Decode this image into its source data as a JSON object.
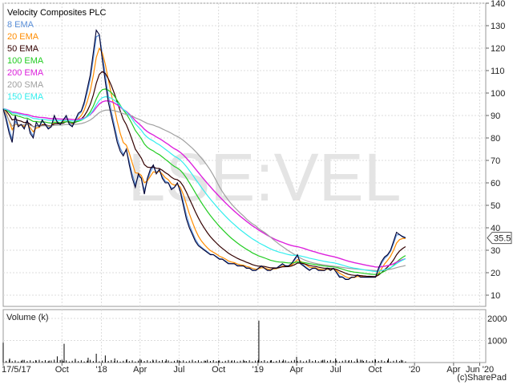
{
  "chart_data": {
    "type": "line",
    "title": "Velocity Composites PLC",
    "watermark": "LSE:VEL",
    "copyright": "(c)SharePad",
    "last_price_label": "35.5",
    "price_axis": {
      "ylim": [
        5,
        140
      ],
      "ticks": [
        "10",
        "20",
        "30",
        "40",
        "50",
        "60",
        "70",
        "80",
        "90",
        "100",
        "110",
        "120",
        "130",
        "140"
      ]
    },
    "volume_axis": {
      "label": "Volume (k)",
      "ylim": [
        0,
        2400
      ],
      "ticks": [
        "1000",
        "2000"
      ]
    },
    "x_axis": {
      "range": [
        "2017-05-17",
        "2020-06-15"
      ],
      "ticks": [
        {
          "date": "2017-05-17",
          "label": "17/5/17"
        },
        {
          "date": "2017-10-01",
          "label": "Oct"
        },
        {
          "date": "2018-01-01",
          "label": "'18"
        },
        {
          "date": "2018-04-01",
          "label": "Apr"
        },
        {
          "date": "2018-07-01",
          "label": "Jul"
        },
        {
          "date": "2018-10-01",
          "label": "Oct"
        },
        {
          "date": "2019-01-01",
          "label": "'19"
        },
        {
          "date": "2019-04-01",
          "label": "Apr"
        },
        {
          "date": "2019-07-01",
          "label": "Jul"
        },
        {
          "date": "2019-10-01",
          "label": "Oct"
        },
        {
          "date": "2020-01-01",
          "label": "'20"
        },
        {
          "date": "2020-04-01",
          "label": "Apr"
        },
        {
          "date": "2020-06-01",
          "label": "Jun '20"
        }
      ]
    },
    "price": [
      [
        "2017-05-17",
        93
      ],
      [
        "2017-05-24",
        88
      ],
      [
        "2017-05-31",
        82
      ],
      [
        "2017-06-07",
        78
      ],
      [
        "2017-06-14",
        90
      ],
      [
        "2017-06-21",
        85
      ],
      [
        "2017-06-28",
        86
      ],
      [
        "2017-07-05",
        84
      ],
      [
        "2017-07-12",
        88
      ],
      [
        "2017-07-19",
        82
      ],
      [
        "2017-07-26",
        80
      ],
      [
        "2017-08-02",
        87
      ],
      [
        "2017-08-09",
        85
      ],
      [
        "2017-08-16",
        88
      ],
      [
        "2017-08-23",
        86
      ],
      [
        "2017-08-30",
        84
      ],
      [
        "2017-09-06",
        85
      ],
      [
        "2017-09-13",
        90
      ],
      [
        "2017-09-20",
        87
      ],
      [
        "2017-09-27",
        86
      ],
      [
        "2017-10-04",
        88
      ],
      [
        "2017-10-11",
        90
      ],
      [
        "2017-10-18",
        86
      ],
      [
        "2017-10-25",
        85
      ],
      [
        "2017-11-01",
        88
      ],
      [
        "2017-11-08",
        91
      ],
      [
        "2017-11-15",
        92
      ],
      [
        "2017-11-22",
        96
      ],
      [
        "2017-11-29",
        102
      ],
      [
        "2017-12-06",
        108
      ],
      [
        "2017-12-13",
        118
      ],
      [
        "2017-12-20",
        128
      ],
      [
        "2017-12-27",
        126
      ],
      [
        "2018-01-03",
        115
      ],
      [
        "2018-01-10",
        105
      ],
      [
        "2018-01-17",
        96
      ],
      [
        "2018-01-24",
        90
      ],
      [
        "2018-01-31",
        84
      ],
      [
        "2018-02-07",
        78
      ],
      [
        "2018-02-14",
        74
      ],
      [
        "2018-02-21",
        72
      ],
      [
        "2018-02-28",
        75
      ],
      [
        "2018-03-07",
        68
      ],
      [
        "2018-03-14",
        62
      ],
      [
        "2018-03-21",
        58
      ],
      [
        "2018-03-28",
        64
      ],
      [
        "2018-04-04",
        62
      ],
      [
        "2018-04-11",
        55
      ],
      [
        "2018-04-18",
        62
      ],
      [
        "2018-04-25",
        66
      ],
      [
        "2018-05-02",
        68
      ],
      [
        "2018-05-09",
        64
      ],
      [
        "2018-05-16",
        66
      ],
      [
        "2018-05-23",
        62
      ],
      [
        "2018-05-30",
        60
      ],
      [
        "2018-06-06",
        60
      ],
      [
        "2018-06-13",
        57
      ],
      [
        "2018-06-20",
        58
      ],
      [
        "2018-06-27",
        60
      ],
      [
        "2018-07-04",
        56
      ],
      [
        "2018-07-11",
        50
      ],
      [
        "2018-07-18",
        44
      ],
      [
        "2018-07-25",
        40
      ],
      [
        "2018-08-01",
        37
      ],
      [
        "2018-08-08",
        34
      ],
      [
        "2018-08-15",
        32
      ],
      [
        "2018-08-22",
        31
      ],
      [
        "2018-08-29",
        30
      ],
      [
        "2018-09-05",
        29
      ],
      [
        "2018-09-12",
        28
      ],
      [
        "2018-09-19",
        28
      ],
      [
        "2018-09-26",
        27
      ],
      [
        "2018-10-03",
        26
      ],
      [
        "2018-10-10",
        26
      ],
      [
        "2018-10-17",
        25
      ],
      [
        "2018-10-24",
        24
      ],
      [
        "2018-10-31",
        24
      ],
      [
        "2018-11-07",
        24
      ],
      [
        "2018-11-14",
        23
      ],
      [
        "2018-11-21",
        23
      ],
      [
        "2018-11-28",
        23
      ],
      [
        "2018-12-05",
        22
      ],
      [
        "2018-12-12",
        22
      ],
      [
        "2018-12-19",
        21
      ],
      [
        "2018-12-27",
        21
      ],
      [
        "2019-01-02",
        22
      ],
      [
        "2019-01-09",
        23
      ],
      [
        "2019-01-16",
        22
      ],
      [
        "2019-01-23",
        21
      ],
      [
        "2019-01-30",
        21
      ],
      [
        "2019-02-06",
        22
      ],
      [
        "2019-02-13",
        22
      ],
      [
        "2019-02-20",
        23
      ],
      [
        "2019-02-27",
        24
      ],
      [
        "2019-03-06",
        23
      ],
      [
        "2019-03-13",
        23
      ],
      [
        "2019-03-20",
        24
      ],
      [
        "2019-03-27",
        26
      ],
      [
        "2019-04-03",
        28
      ],
      [
        "2019-04-10",
        24
      ],
      [
        "2019-04-17",
        23
      ],
      [
        "2019-04-24",
        22
      ],
      [
        "2019-05-01",
        21
      ],
      [
        "2019-05-08",
        22
      ],
      [
        "2019-05-15",
        22
      ],
      [
        "2019-05-22",
        21
      ],
      [
        "2019-05-29",
        21
      ],
      [
        "2019-06-05",
        21
      ],
      [
        "2019-06-12",
        22
      ],
      [
        "2019-06-19",
        21
      ],
      [
        "2019-06-26",
        22
      ],
      [
        "2019-07-03",
        20
      ],
      [
        "2019-07-10",
        18
      ],
      [
        "2019-07-17",
        18
      ],
      [
        "2019-07-24",
        17
      ],
      [
        "2019-07-31",
        17
      ],
      [
        "2019-08-07",
        18
      ],
      [
        "2019-08-14",
        18
      ],
      [
        "2019-08-21",
        19
      ],
      [
        "2019-08-28",
        18
      ],
      [
        "2019-09-04",
        18
      ],
      [
        "2019-09-11",
        18
      ],
      [
        "2019-09-18",
        18
      ],
      [
        "2019-09-25",
        18
      ],
      [
        "2019-10-02",
        18
      ],
      [
        "2019-10-09",
        22
      ],
      [
        "2019-10-16",
        25
      ],
      [
        "2019-10-23",
        27
      ],
      [
        "2019-10-30",
        28
      ],
      [
        "2019-11-06",
        30
      ],
      [
        "2019-11-13",
        34
      ],
      [
        "2019-11-20",
        38
      ],
      [
        "2019-11-27",
        37
      ],
      [
        "2019-12-04",
        36
      ],
      [
        "2019-12-11",
        35.5
      ]
    ],
    "series": [
      {
        "name": "8 EMA",
        "color": "#5a8fd8",
        "width": 1.2
      },
      {
        "name": "20 EMA",
        "color": "#ff8c00",
        "width": 1.2
      },
      {
        "name": "50 EMA",
        "color": "#330000",
        "width": 1.2
      },
      {
        "name": "100 EMA",
        "color": "#22cc22",
        "width": 1.2
      },
      {
        "name": "200 EMA",
        "color": "#dd22dd",
        "width": 1.4
      },
      {
        "name": "200 SMA",
        "color": "#a0a0a0",
        "width": 1.2
      },
      {
        "name": "150 EMA",
        "color": "#33eeee",
        "width": 1.2
      }
    ],
    "price_color": "#000033",
    "volume": [
      [
        "2017-05-17",
        900
      ],
      [
        "2017-06-01",
        180
      ],
      [
        "2017-07-01",
        120
      ],
      [
        "2017-08-01",
        110
      ],
      [
        "2017-09-01",
        90
      ],
      [
        "2017-09-20",
        280
      ],
      [
        "2017-10-01",
        130
      ],
      [
        "2017-10-06",
        850
      ],
      [
        "2017-11-01",
        170
      ],
      [
        "2017-12-01",
        220
      ],
      [
        "2017-12-20",
        400
      ],
      [
        "2018-01-10",
        320
      ],
      [
        "2018-02-01",
        190
      ],
      [
        "2018-03-01",
        150
      ],
      [
        "2018-04-01",
        160
      ],
      [
        "2018-05-01",
        130
      ],
      [
        "2018-06-01",
        140
      ],
      [
        "2018-07-01",
        100
      ],
      [
        "2018-08-01",
        120
      ],
      [
        "2018-09-01",
        80
      ],
      [
        "2018-10-01",
        90
      ],
      [
        "2018-11-01",
        100
      ],
      [
        "2018-12-01",
        80
      ],
      [
        "2019-01-01",
        90
      ],
      [
        "2019-01-03",
        1900
      ],
      [
        "2019-02-01",
        110
      ],
      [
        "2019-03-01",
        130
      ],
      [
        "2019-04-01",
        260
      ],
      [
        "2019-05-01",
        150
      ],
      [
        "2019-06-01",
        120
      ],
      [
        "2019-07-01",
        180
      ],
      [
        "2019-08-01",
        110
      ],
      [
        "2019-08-20",
        170
      ],
      [
        "2019-09-01",
        120
      ],
      [
        "2019-10-01",
        150
      ],
      [
        "2019-11-01",
        180
      ],
      [
        "2019-12-01",
        120
      ]
    ]
  }
}
